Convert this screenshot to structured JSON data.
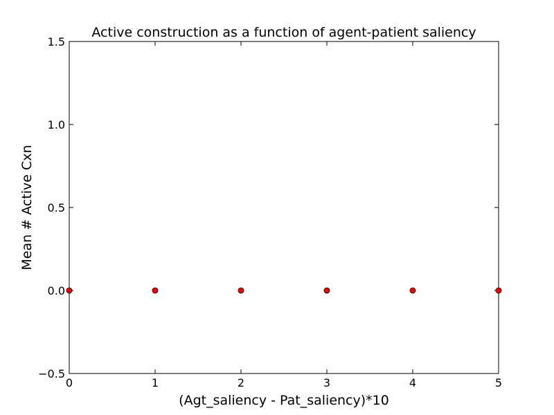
{
  "chart_data": {
    "type": "scatter",
    "title": "Active construction as a function of agent-patient saliency",
    "xlabel": "(Agt_saliency - Pat_saliency)*10",
    "ylabel": "Mean # Active Cxn",
    "xlim": [
      0,
      5
    ],
    "ylim": [
      -0.5,
      1.5
    ],
    "x_ticks": [
      0,
      1,
      2,
      3,
      4,
      5
    ],
    "x_tick_labels": [
      "0",
      "1",
      "2",
      "3",
      "4",
      "5"
    ],
    "y_ticks": [
      -0.5,
      0.0,
      0.5,
      1.0,
      1.5
    ],
    "y_tick_labels": [
      "−0.5",
      "0.0",
      "0.5",
      "1.0",
      "1.5"
    ],
    "grid": false,
    "legend": "none",
    "series": [
      {
        "x": [
          0,
          1,
          2,
          3,
          4,
          5
        ],
        "y": [
          0,
          0,
          0,
          0,
          0,
          0
        ],
        "color": "#ff0000",
        "marker": "circle"
      }
    ]
  }
}
